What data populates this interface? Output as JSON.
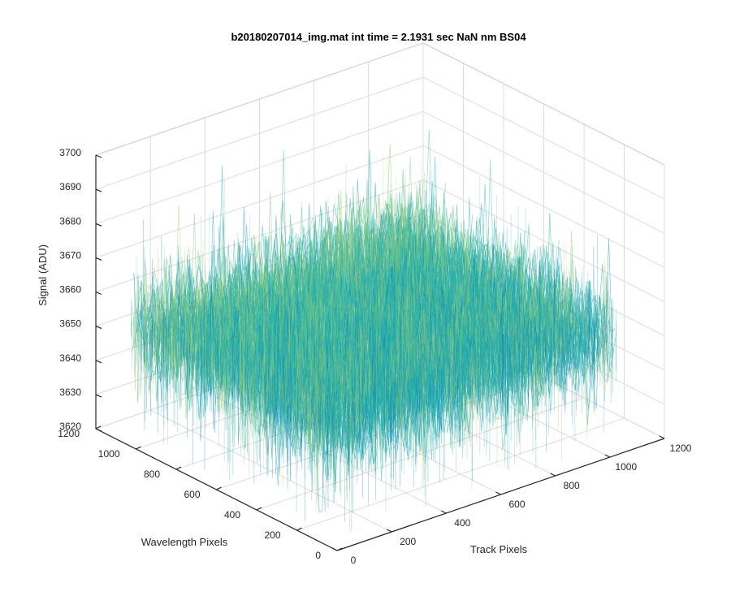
{
  "chart_data": {
    "type": "surface",
    "title": "b20180207014_img.mat int time = 2.1931 sec  NaN nm BS04",
    "xlabel": "Track Pixels",
    "ylabel": "Wavelength Pixels",
    "zlabel": "Signal (ADU)",
    "xlim": [
      0,
      1200
    ],
    "ylim": [
      0,
      1200
    ],
    "zlim": [
      3620,
      3700
    ],
    "x_data_range": [
      0,
      1024
    ],
    "y_data_range": [
      0,
      1024
    ],
    "x_ticks": [
      "0",
      "200",
      "400",
      "600",
      "800",
      "1000",
      "1200"
    ],
    "y_ticks": [
      "0",
      "200",
      "400",
      "600",
      "800",
      "1000",
      "1200"
    ],
    "z_ticks": [
      "3620",
      "3630",
      "3640",
      "3650",
      "3660",
      "3670",
      "3680",
      "3690",
      "3700"
    ],
    "signal_mean": 3655,
    "signal_typical_range": [
      3640,
      3670
    ],
    "signal_extreme_range": [
      3624,
      3700
    ],
    "grid": true,
    "colormap": "parula",
    "colors": {
      "low": "#0072BD",
      "mid": "#18B4B4",
      "high": "#E6D847",
      "grid": "#dcdcdc",
      "axis": "#262626"
    }
  }
}
